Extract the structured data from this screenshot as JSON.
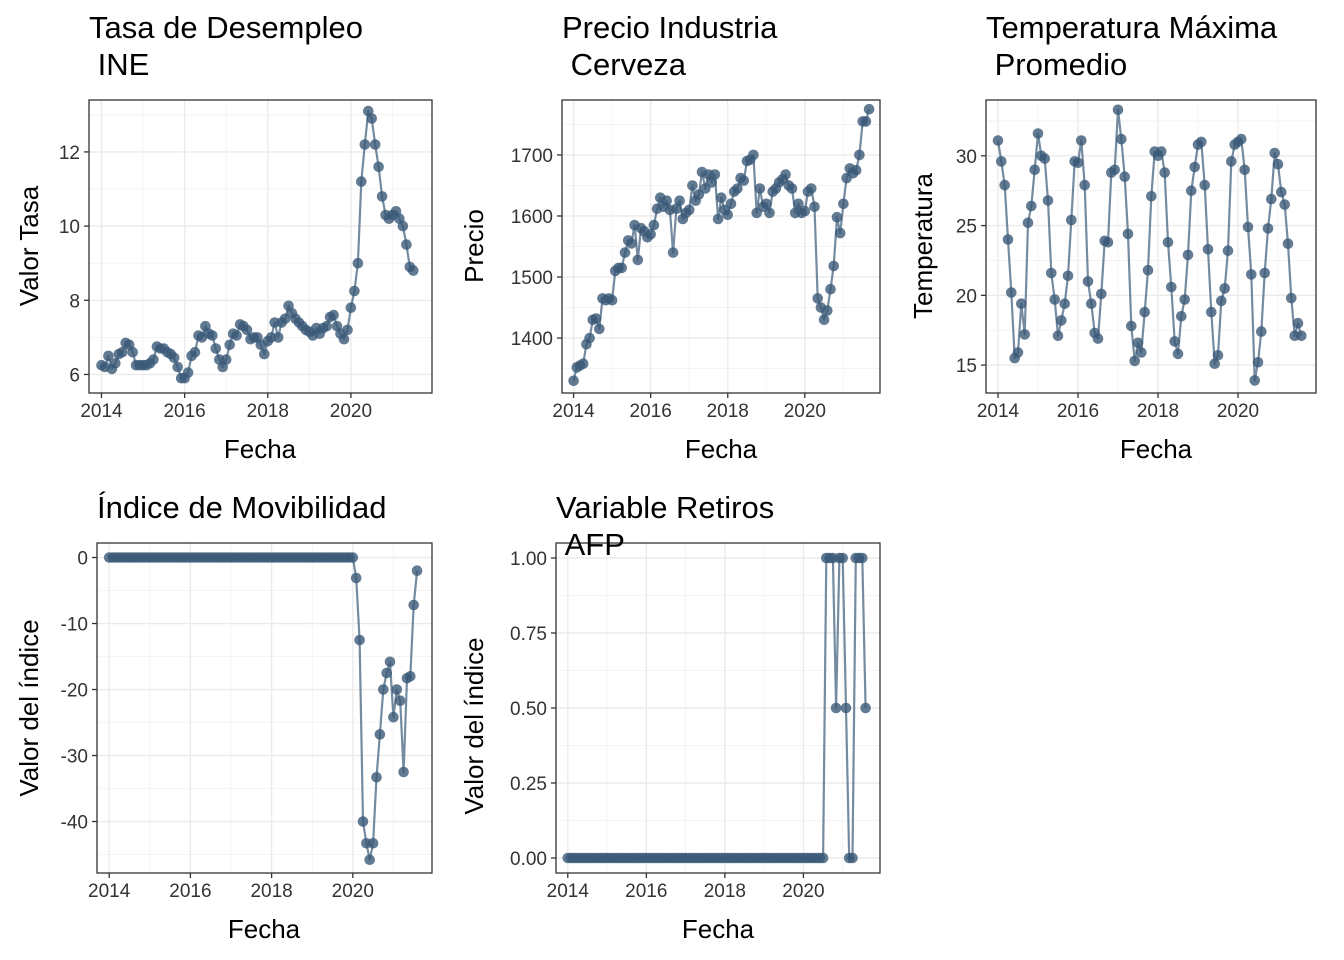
{
  "style": {
    "point_color": "#3b5a78",
    "line_color": "#3b5a78",
    "point_alpha": 0.8,
    "line_alpha": 0.7
  },
  "chart_data": [
    {
      "type": "line",
      "title_lines": [
        "Tasa de Desempleo",
        "INE"
      ],
      "xlabel": "Fecha",
      "ylabel": "Valor Tasa",
      "xlim": [
        2013.7,
        2021.95
      ],
      "ylim": [
        5.5,
        13.4
      ],
      "xticks": [
        2014,
        2016,
        2018,
        2020
      ],
      "xtick_labels": [
        "2014",
        "2016",
        "2018",
        "2020"
      ],
      "yticks": [
        6,
        8,
        10,
        12
      ],
      "ytick_labels": [
        "6",
        "8",
        "10",
        "12"
      ],
      "x_start": 2014.0,
      "x_step": 0.0833333,
      "values": [
        6.25,
        6.2,
        6.5,
        6.15,
        6.3,
        6.55,
        6.6,
        6.85,
        6.8,
        6.6,
        6.25,
        6.25,
        6.25,
        6.25,
        6.3,
        6.4,
        6.75,
        6.7,
        6.7,
        6.6,
        6.55,
        6.45,
        6.2,
        5.9,
        5.9,
        6.05,
        6.5,
        6.6,
        7.05,
        7.0,
        7.3,
        7.1,
        7.05,
        6.7,
        6.4,
        6.2,
        6.4,
        6.8,
        7.1,
        7.05,
        7.35,
        7.3,
        7.2,
        6.95,
        7.0,
        7.0,
        6.8,
        6.55,
        6.9,
        7.0,
        7.4,
        7.0,
        7.4,
        7.5,
        7.85,
        7.65,
        7.5,
        7.4,
        7.3,
        7.2,
        7.15,
        7.05,
        7.25,
        7.1,
        7.25,
        7.3,
        7.55,
        7.6,
        7.3,
        7.1,
        6.95,
        7.2,
        7.8,
        8.25,
        9.0,
        11.2,
        12.2,
        13.1,
        12.9,
        12.2,
        11.6,
        10.8,
        10.3,
        10.2,
        10.3,
        10.4,
        10.2,
        10.0,
        9.5,
        8.9,
        8.8
      ]
    },
    {
      "type": "line",
      "title_lines": [
        "Precio Industria",
        "Cerveza"
      ],
      "xlabel": "Fecha",
      "ylabel": "Precio",
      "xlim": [
        2013.7,
        2021.95
      ],
      "ylim": [
        1310,
        1790
      ],
      "xticks": [
        2014,
        2016,
        2018,
        2020
      ],
      "xtick_labels": [
        "2014",
        "2016",
        "2018",
        "2020"
      ],
      "yticks": [
        1400,
        1500,
        1600,
        1700
      ],
      "ytick_labels": [
        "1400",
        "1500",
        "1600",
        "1700"
      ],
      "x_start": 2014.0,
      "x_step": 0.0833333,
      "values": [
        1330,
        1352,
        1355,
        1358,
        1390,
        1400,
        1430,
        1432,
        1415,
        1465,
        1462,
        1465,
        1462,
        1510,
        1515,
        1515,
        1540,
        1560,
        1555,
        1585,
        1528,
        1580,
        1575,
        1565,
        1570,
        1585,
        1612,
        1630,
        1615,
        1625,
        1610,
        1540,
        1612,
        1625,
        1595,
        1605,
        1610,
        1650,
        1625,
        1635,
        1672,
        1645,
        1668,
        1655,
        1668,
        1595,
        1630,
        1610,
        1602,
        1620,
        1640,
        1645,
        1662,
        1658,
        1690,
        1692,
        1700,
        1605,
        1645,
        1615,
        1620,
        1605,
        1640,
        1645,
        1655,
        1660,
        1668,
        1650,
        1645,
        1605,
        1620,
        1605,
        1608,
        1640,
        1645,
        1615,
        1465,
        1450,
        1430,
        1445,
        1480,
        1518,
        1598,
        1572,
        1620,
        1662,
        1678,
        1670,
        1675,
        1700,
        1755,
        1755,
        1775
      ]
    },
    {
      "type": "line",
      "title_lines": [
        "Temperatura Máxima",
        "Promedio"
      ],
      "xlabel": "Fecha",
      "ylabel": "Temperatura",
      "xlim": [
        2013.7,
        2021.95
      ],
      "ylim": [
        13.0,
        34.0
      ],
      "xticks": [
        2014,
        2016,
        2018,
        2020
      ],
      "xtick_labels": [
        "2014",
        "2016",
        "2018",
        "2020"
      ],
      "yticks": [
        15,
        20,
        25,
        30
      ],
      "ytick_labels": [
        "15",
        "20",
        "25",
        "30"
      ],
      "x_start": 2014.0,
      "x_step": 0.0833333,
      "values": [
        31.1,
        29.6,
        27.9,
        24.0,
        20.2,
        15.5,
        15.9,
        19.4,
        17.2,
        25.2,
        26.4,
        29.0,
        31.6,
        30.0,
        29.8,
        26.8,
        21.6,
        19.7,
        17.1,
        18.2,
        19.4,
        21.4,
        25.4,
        29.6,
        29.5,
        31.1,
        27.9,
        21.0,
        19.4,
        17.3,
        16.9,
        20.1,
        23.9,
        23.8,
        28.8,
        29.0,
        33.3,
        31.2,
        28.5,
        24.4,
        17.8,
        15.3,
        16.6,
        15.9,
        18.8,
        21.8,
        27.1,
        30.3,
        30.0,
        30.3,
        28.8,
        23.8,
        20.6,
        16.7,
        15.8,
        18.5,
        19.7,
        22.9,
        27.5,
        29.2,
        30.8,
        31.0,
        27.9,
        23.3,
        18.8,
        15.1,
        15.7,
        19.6,
        20.5,
        23.2,
        29.6,
        30.8,
        31.0,
        31.2,
        29.0,
        24.9,
        21.5,
        13.9,
        15.2,
        17.4,
        21.6,
        24.8,
        26.9,
        30.2,
        29.4,
        27.4,
        26.5,
        23.7,
        19.8,
        17.1,
        18.0,
        17.1
      ]
    },
    {
      "type": "line",
      "title_lines": [
        "Índice de Movibilidad"
      ],
      "xlabel": "Fecha",
      "ylabel": "Valor del índice",
      "xlim": [
        2013.7,
        2021.95
      ],
      "ylim": [
        -47.8,
        2.2
      ],
      "xticks": [
        2014,
        2016,
        2018,
        2020
      ],
      "xtick_labels": [
        "2014",
        "2016",
        "2018",
        "2020"
      ],
      "yticks": [
        -40,
        -30,
        -20,
        -10,
        0
      ],
      "ytick_labels": [
        "-40",
        "-30",
        "-20",
        "-10",
        "0"
      ],
      "x_start": 2014.0,
      "x_step": 0.0833333,
      "leading_zero_count": 73,
      "tail_values": [
        -3.1,
        -12.5,
        -40.0,
        -43.3,
        -45.8,
        -43.3,
        -33.3,
        -26.8,
        -20.0,
        -17.5,
        -15.8,
        -24.2,
        -20.0,
        -21.7,
        -32.5,
        -18.3,
        -18.0,
        -7.2,
        -2.0
      ]
    },
    {
      "type": "line",
      "title_lines": [
        "Variable Retiros",
        "AFP"
      ],
      "xlabel": "Fecha",
      "ylabel": "Valor del índice",
      "xlim": [
        2013.7,
        2021.95
      ],
      "ylim": [
        -0.05,
        1.05
      ],
      "xticks": [
        2014,
        2016,
        2018,
        2020
      ],
      "xtick_labels": [
        "2014",
        "2016",
        "2018",
        "2020"
      ],
      "yticks": [
        0,
        0.25,
        0.5,
        0.75,
        1.0
      ],
      "ytick_labels": [
        "0.00",
        "0.25",
        "0.50",
        "0.75",
        "1.00"
      ],
      "x_start": 2014.0,
      "x_step": 0.0833333,
      "leading_zero_count": 79,
      "tail_values": [
        1,
        1,
        1,
        0.5,
        1,
        1,
        0.5,
        0,
        0,
        1,
        1,
        1,
        0.5
      ]
    }
  ]
}
